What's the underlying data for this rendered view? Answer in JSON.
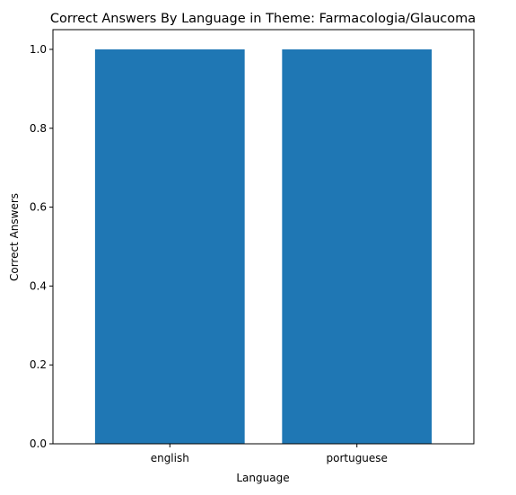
{
  "chart_data": {
    "type": "bar",
    "title": "Correct Answers By Language in Theme: Farmacologia/Glaucoma",
    "xlabel": "Language",
    "ylabel": "Correct Answers",
    "categories": [
      "english",
      "portuguese"
    ],
    "values": [
      1.0,
      1.0
    ],
    "ylim": [
      0.0,
      1.05
    ],
    "yticks": [
      "0.0",
      "0.2",
      "0.4",
      "0.6",
      "0.8",
      "1.0"
    ],
    "grid": false,
    "legend": "none",
    "bar_color": "#1f77b4"
  }
}
